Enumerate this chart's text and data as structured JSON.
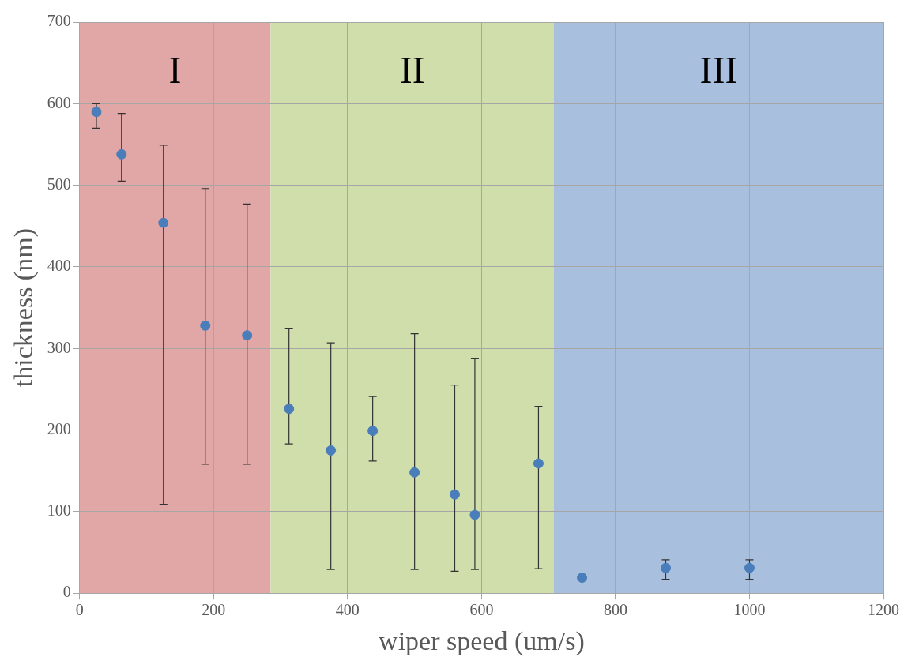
{
  "chart_data": {
    "type": "scatter",
    "xlabel": "wiper speed (um/s)",
    "ylabel": "thickness (nm)",
    "x": [
      25,
      62.5,
      125,
      187.5,
      250,
      312.5,
      375,
      437.5,
      500,
      560,
      590,
      685,
      750,
      875,
      1000
    ],
    "series": [
      {
        "color": "#4a7ebb",
        "values": [
          590,
          538,
          454,
          328,
          316,
          226,
          175,
          199,
          148,
          121,
          96,
          159,
          19,
          31,
          31
        ],
        "errors": [
          [
            570,
            600
          ],
          [
            505,
            588
          ],
          [
            109,
            549
          ],
          [
            158,
            496
          ],
          [
            158,
            477
          ],
          [
            183,
            324
          ],
          [
            29,
            307
          ],
          [
            162,
            241
          ],
          [
            29,
            318
          ],
          [
            27,
            255
          ],
          [
            29,
            288
          ],
          [
            30,
            229
          ],
          null,
          [
            17,
            41
          ],
          [
            17,
            41
          ]
        ]
      }
    ],
    "bands": [
      {
        "axis": "x",
        "from": 0,
        "to": 285,
        "label": "I",
        "color": "#e0a7a6"
      },
      {
        "axis": "x",
        "from": 285,
        "to": 708,
        "label": "II",
        "color": "#d0deab"
      },
      {
        "axis": "x",
        "from": 708,
        "to": 1200,
        "label": "III",
        "color": "#a8c0de"
      }
    ],
    "xlim": [
      0,
      1200
    ],
    "xticks": [
      0,
      200,
      400,
      600,
      800,
      1000,
      1200
    ],
    "ylim": [
      0,
      700
    ],
    "yticks": [
      0,
      100,
      200,
      300,
      400,
      500,
      600,
      700
    ],
    "grid": true,
    "marker": "circle"
  }
}
